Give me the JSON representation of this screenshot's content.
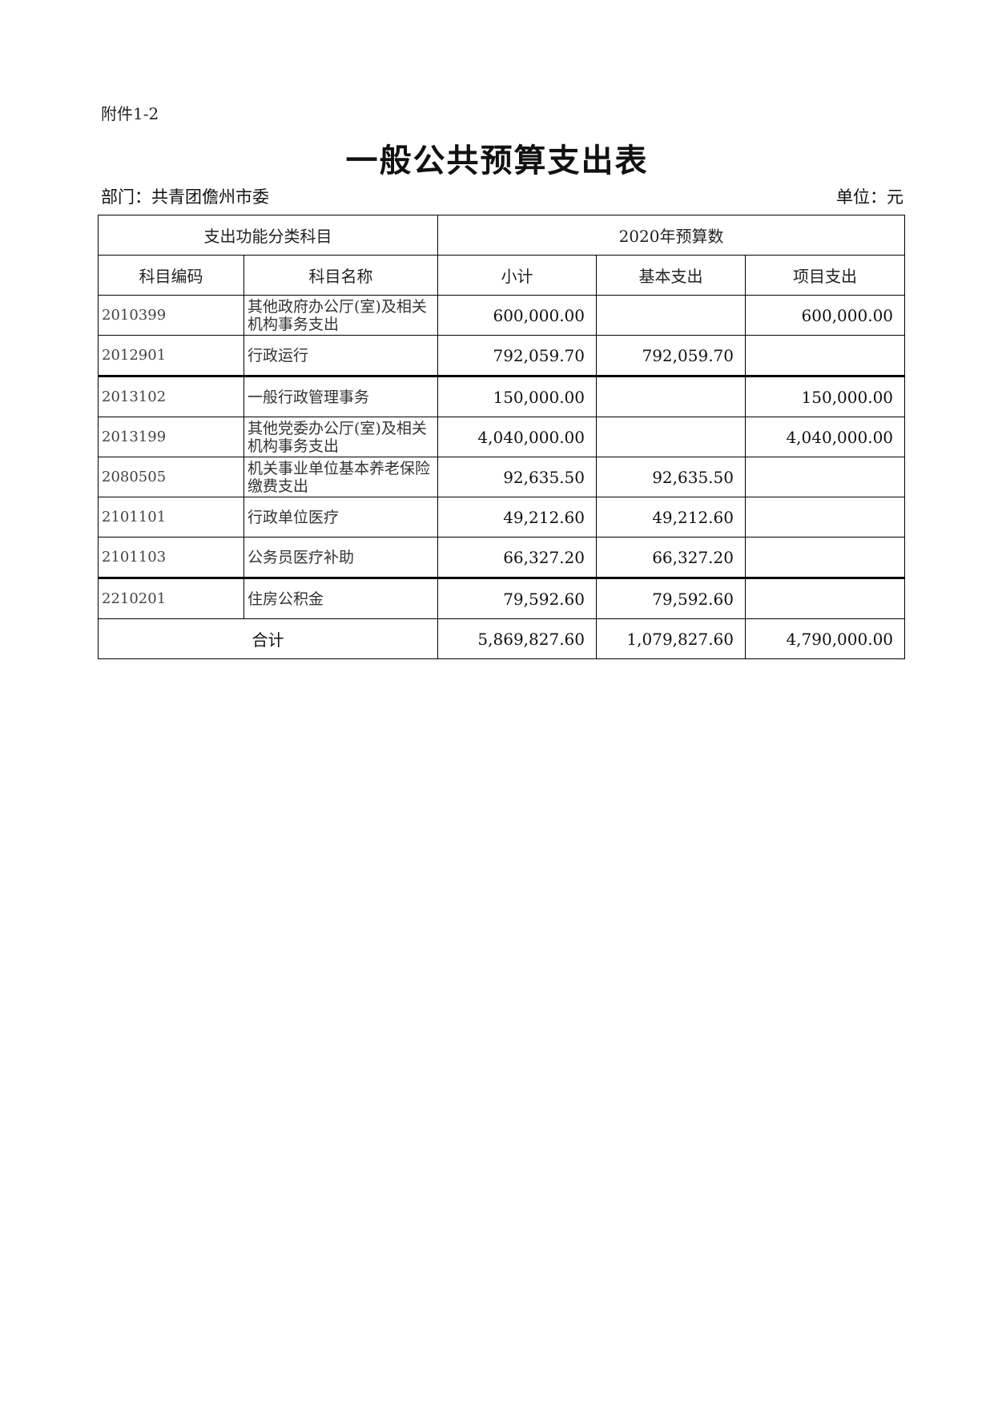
{
  "attachment_label": "附件1-2",
  "title": "一般公共预算支出表",
  "department": "部门：共青团儋州市委",
  "unit": "单位：元",
  "table": {
    "group_headers": [
      "支出功能分类科目",
      "2020年预算数"
    ],
    "columns": [
      "科目编码",
      "科目名称",
      "小计",
      "基本支出",
      "项目支出"
    ],
    "rows": [
      {
        "code": "2010399",
        "name": "其他政府办公厅(室)及相关机构事务支出",
        "subtotal": "600,000.00",
        "basic": "",
        "project": "600,000.00"
      },
      {
        "code": "2012901",
        "name": "行政运行",
        "subtotal": "792,059.70",
        "basic": "792,059.70",
        "project": ""
      },
      {
        "code": "2013102",
        "name": "一般行政管理事务",
        "subtotal": "150,000.00",
        "basic": "",
        "project": "150,000.00"
      },
      {
        "code": "2013199",
        "name": "其他党委办公厅(室)及相关机构事务支出",
        "subtotal": "4,040,000.00",
        "basic": "",
        "project": "4,040,000.00"
      },
      {
        "code": "2080505",
        "name": "机关事业单位基本养老保险缴费支出",
        "subtotal": "92,635.50",
        "basic": "92,635.50",
        "project": ""
      },
      {
        "code": "2101101",
        "name": "行政单位医疗",
        "subtotal": "49,212.60",
        "basic": "49,212.60",
        "project": ""
      },
      {
        "code": "2101103",
        "name": "公务员医疗补助",
        "subtotal": "66,327.20",
        "basic": "66,327.20",
        "project": ""
      },
      {
        "code": "2210201",
        "name": "住房公积金",
        "subtotal": "79,592.60",
        "basic": "79,592.60",
        "project": ""
      }
    ],
    "total": {
      "label": "合计",
      "subtotal": "5,869,827.60",
      "basic": "1,079,827.60",
      "project": "4,790,000.00"
    }
  }
}
